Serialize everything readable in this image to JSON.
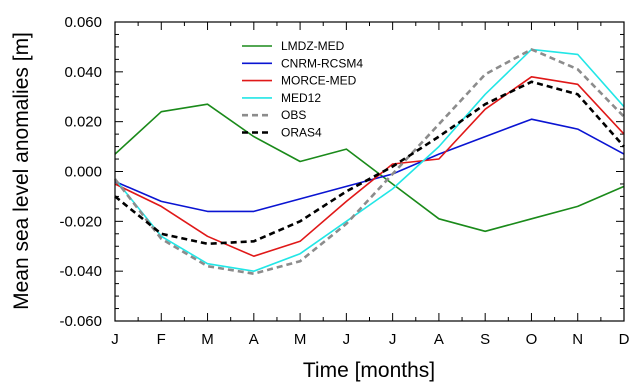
{
  "chart_data": {
    "type": "line",
    "title": "",
    "xlabel": "Time [months]",
    "ylabel": "Mean sea level anomalies [m]",
    "categories": [
      "J",
      "F",
      "M",
      "A",
      "M",
      "J",
      "J",
      "A",
      "S",
      "O",
      "N",
      "D"
    ],
    "ylim": [
      -0.06,
      0.06
    ],
    "yticks": [
      "0.060",
      "0.040",
      "0.020",
      "0.000",
      "-0.020",
      "-0.040",
      "-0.060"
    ],
    "ytick_values": [
      0.06,
      0.04,
      0.02,
      0.0,
      -0.02,
      -0.04,
      -0.06
    ],
    "grid": false,
    "legend_position": "top-center",
    "series": [
      {
        "name": "LMDZ-MED",
        "color": "#1a8a1a",
        "dash": "solid",
        "values": [
          0.007,
          0.024,
          0.027,
          0.014,
          0.004,
          0.009,
          -0.005,
          -0.019,
          -0.024,
          -0.019,
          -0.014,
          -0.006
        ]
      },
      {
        "name": "CNRM-RCSM4",
        "color": "#0a14d2",
        "dash": "solid",
        "values": [
          -0.004,
          -0.012,
          -0.016,
          -0.016,
          -0.011,
          -0.006,
          -0.001,
          0.007,
          0.014,
          0.021,
          0.017,
          0.007
        ]
      },
      {
        "name": "MORCE-MED",
        "color": "#e01818",
        "dash": "solid",
        "values": [
          -0.005,
          -0.014,
          -0.026,
          -0.034,
          -0.028,
          -0.012,
          0.003,
          0.005,
          0.025,
          0.038,
          0.035,
          0.015
        ]
      },
      {
        "name": "MED12",
        "color": "#22e6e6",
        "dash": "solid",
        "values": [
          -0.003,
          -0.026,
          -0.037,
          -0.04,
          -0.033,
          -0.02,
          -0.007,
          0.01,
          0.031,
          0.049,
          0.047,
          0.026
        ]
      },
      {
        "name": "OBS",
        "color": "#8c8c8c",
        "dash": "dashed",
        "values": [
          -0.003,
          -0.027,
          -0.038,
          -0.041,
          -0.036,
          -0.021,
          -0.001,
          0.019,
          0.039,
          0.049,
          0.041,
          0.022
        ]
      },
      {
        "name": "ORAS4",
        "color": "#000000",
        "dash": "dashed",
        "values": [
          -0.01,
          -0.025,
          -0.029,
          -0.028,
          -0.02,
          -0.008,
          0.002,
          0.014,
          0.027,
          0.036,
          0.031,
          0.01
        ]
      }
    ]
  }
}
